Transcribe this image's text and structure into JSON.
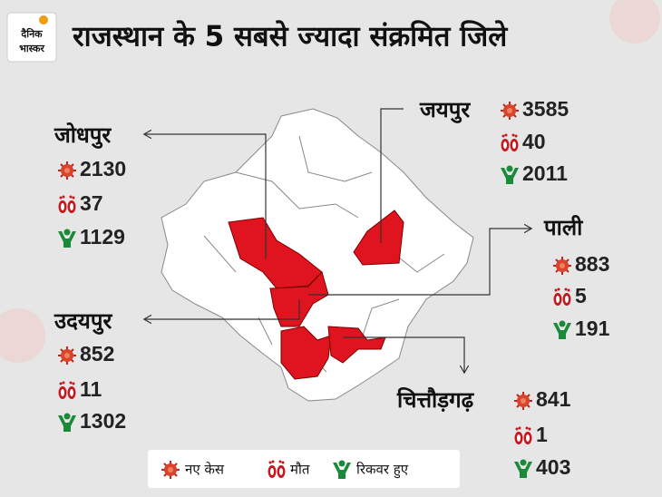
{
  "logo": {
    "line1": "दैनिक",
    "line2": "भास्कर"
  },
  "title": "राजस्थान के 5 सबसे ज्यादा संक्रमित जिले",
  "districts": [
    {
      "name": "जोधपुर",
      "cases": 2130,
      "deaths": 37,
      "recovered": 1129
    },
    {
      "name": "उदयपुर",
      "cases": 852,
      "deaths": 11,
      "recovered": 1302
    },
    {
      "name": "जयपुर",
      "cases": 3585,
      "deaths": 40,
      "recovered": 2011
    },
    {
      "name": "पाली",
      "cases": 883,
      "deaths": 5,
      "recovered": 191
    },
    {
      "name": "चित्तौड़गढ़",
      "cases": 841,
      "deaths": 1,
      "recovered": 403
    }
  ],
  "legend": {
    "cases": "नए केस",
    "deaths": "मौत",
    "recovered": "रिकवर हुए"
  }
}
